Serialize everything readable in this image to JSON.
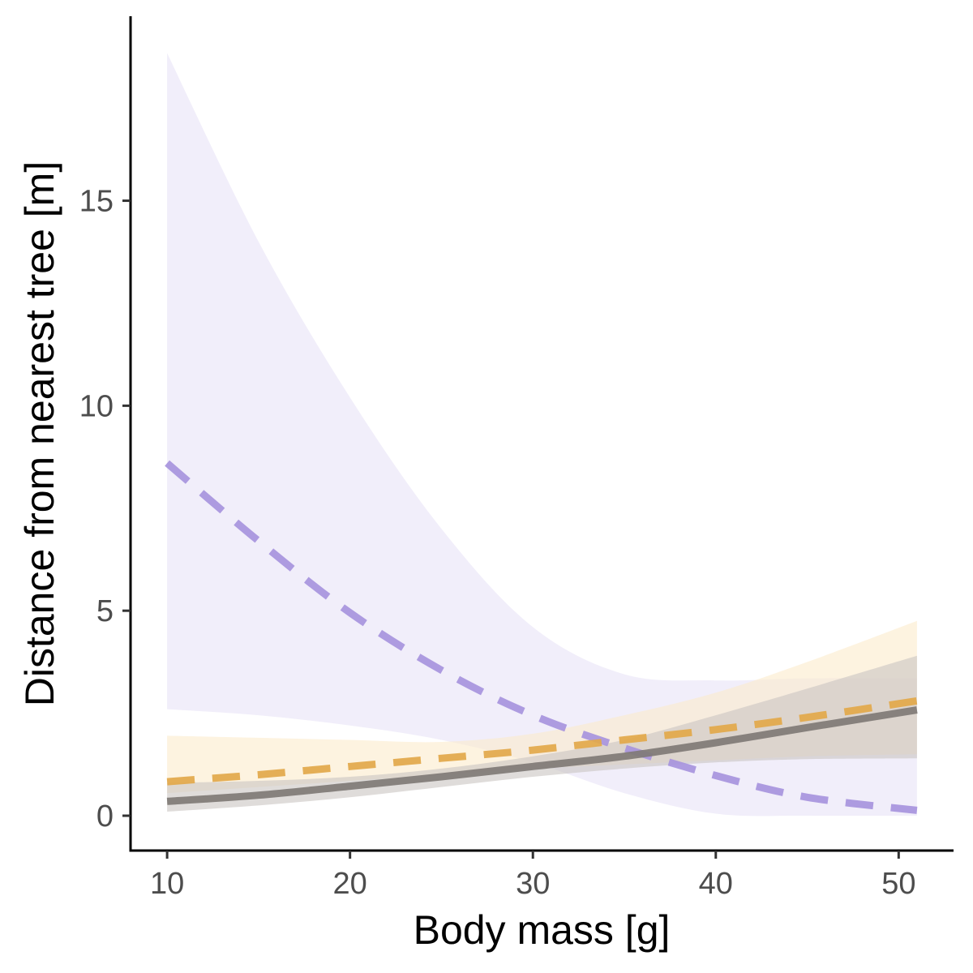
{
  "chart_data": {
    "type": "line",
    "title": "",
    "xlabel": "Body mass [g]",
    "ylabel": "Distance from nearest tree [m]",
    "xlim": [
      8,
      53
    ],
    "ylim": [
      -0.85,
      19.5
    ],
    "xticks": [
      10,
      20,
      30,
      40,
      50
    ],
    "yticks": [
      0,
      5,
      10,
      15
    ],
    "grid": false,
    "legend": "none",
    "x": [
      10,
      15,
      20,
      25,
      30,
      35,
      40,
      45,
      51
    ],
    "series": [
      {
        "line_style": "dashed",
        "color": "#A794DD",
        "band_color": "#E8E2F6",
        "values": [
          8.6,
          6.7,
          4.95,
          3.55,
          2.45,
          1.65,
          0.98,
          0.45,
          0.13
        ],
        "lower": [
          2.6,
          2.45,
          2.2,
          1.85,
          1.3,
          0.55,
          0.05,
          0.0,
          0.0
        ],
        "upper": [
          18.6,
          14.0,
          10.2,
          7.0,
          4.6,
          3.45,
          3.3,
          3.35,
          3.35
        ]
      },
      {
        "line_style": "dashed",
        "color": "#E2A84A",
        "band_color": "#FBEBCB",
        "values": [
          0.83,
          1.0,
          1.2,
          1.4,
          1.6,
          1.85,
          2.1,
          2.4,
          2.8
        ],
        "lower": [
          0.55,
          0.7,
          0.85,
          1.0,
          1.15,
          1.25,
          1.35,
          1.45,
          1.5
        ],
        "upper": [
          1.95,
          1.9,
          1.85,
          1.8,
          2.0,
          2.45,
          3.0,
          3.75,
          4.75
        ]
      },
      {
        "line_style": "solid",
        "color": "#7F7A76",
        "band_color": "#C9C5C2",
        "values": [
          0.35,
          0.5,
          0.72,
          0.95,
          1.2,
          1.45,
          1.78,
          2.15,
          2.58
        ],
        "lower": [
          0.1,
          0.25,
          0.45,
          0.7,
          0.95,
          1.15,
          1.3,
          1.38,
          1.4
        ],
        "upper": [
          0.8,
          0.85,
          0.95,
          1.15,
          1.45,
          1.85,
          2.45,
          3.1,
          3.9
        ]
      }
    ]
  }
}
